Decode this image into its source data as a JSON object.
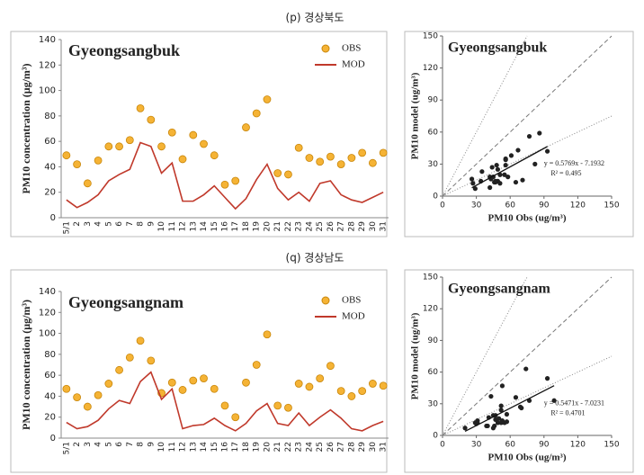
{
  "captions": [
    "(p) 경상북도",
    "(q) 경상남도"
  ],
  "chart_data": [
    {
      "type": "line",
      "title": "Gyeongsangbuk",
      "y_label": "PM10 concentration (μg/m³)",
      "categories": [
        "5/1",
        "2",
        "3",
        "4",
        "5",
        "6",
        "7",
        "8",
        "9",
        "10",
        "11",
        "12",
        "13",
        "14",
        "15",
        "16",
        "17",
        "18",
        "19",
        "20",
        "21",
        "22",
        "23",
        "24",
        "25",
        "26",
        "27",
        "28",
        "29",
        "30",
        "31"
      ],
      "series": [
        {
          "name": "OBS",
          "color": "#f5b335",
          "mode": "markers",
          "values": [
            49,
            42,
            27,
            45,
            56,
            56,
            61,
            86,
            77,
            56,
            67,
            46,
            65,
            58,
            49,
            26,
            29,
            71,
            82,
            93,
            35,
            34,
            55,
            47,
            44,
            48,
            42,
            47,
            51,
            43,
            51
          ]
        },
        {
          "name": "MOD",
          "color": "#c0392b",
          "mode": "lines",
          "values": [
            14,
            8,
            12,
            18,
            29,
            34,
            38,
            59,
            56,
            35,
            43,
            13,
            13,
            18,
            25,
            16,
            7,
            15,
            30,
            42,
            23,
            14,
            20,
            13,
            27,
            29,
            18,
            14,
            12,
            16,
            20
          ]
        }
      ],
      "ylim": [
        0,
        140
      ],
      "yticks": [
        0,
        20,
        40,
        60,
        80,
        100,
        120,
        140
      ]
    },
    {
      "type": "scatter",
      "title": "Gyeongsangbuk",
      "x_label": "PM10 Obs (ug/m³)",
      "y_label": "PM10 model (ug/m³)",
      "x": [
        49,
        42,
        27,
        45,
        56,
        56,
        61,
        86,
        77,
        56,
        67,
        46,
        65,
        58,
        49,
        26,
        29,
        71,
        82,
        93,
        35,
        34,
        55,
        47,
        44,
        48,
        42,
        47,
        51,
        43,
        51
      ],
      "values": [
        14,
        8,
        12,
        18,
        29,
        34,
        38,
        59,
        56,
        35,
        43,
        13,
        13,
        18,
        25,
        16,
        7,
        15,
        30,
        42,
        23,
        14,
        20,
        13,
        27,
        29,
        18,
        14,
        12,
        16,
        20
      ],
      "color": "#222222",
      "fit": {
        "slope": 0.5769,
        "intercept": -7.1932,
        "label": "y = 0.5769x - 7.1932",
        "r2_label": "R² = 0.495"
      },
      "xlim": [
        0,
        150
      ],
      "ylim": [
        0,
        150
      ],
      "xticks": [
        0,
        30,
        60,
        90,
        120,
        150
      ],
      "yticks": [
        0,
        30,
        60,
        90,
        120,
        150
      ]
    },
    {
      "type": "line",
      "title": "Gyeongsangnam",
      "y_label": "PM10 concentration (μg/m³)",
      "categories": [
        "5/1",
        "2",
        "3",
        "4",
        "5",
        "6",
        "7",
        "8",
        "9",
        "10",
        "11",
        "12",
        "13",
        "14",
        "15",
        "16",
        "17",
        "18",
        "19",
        "20",
        "21",
        "22",
        "23",
        "24",
        "25",
        "26",
        "27",
        "28",
        "29",
        "30",
        "31"
      ],
      "series": [
        {
          "name": "OBS",
          "color": "#f5b335",
          "mode": "markers",
          "values": [
            47,
            39,
            30,
            41,
            52,
            65,
            77,
            93,
            74,
            43,
            53,
            46,
            55,
            57,
            47,
            31,
            20,
            53,
            70,
            99,
            31,
            29,
            52,
            49,
            57,
            69,
            45,
            40,
            45,
            52,
            50
          ]
        },
        {
          "name": "MOD",
          "color": "#c0392b",
          "mode": "lines",
          "values": [
            15,
            9,
            11,
            17,
            28,
            36,
            33,
            54,
            63,
            37,
            47,
            9,
            12,
            13,
            19,
            12,
            7,
            14,
            26,
            33,
            14,
            12,
            24,
            12,
            20,
            27,
            19,
            9,
            7,
            12,
            16
          ]
        }
      ],
      "ylim": [
        0,
        140
      ],
      "yticks": [
        0,
        20,
        40,
        60,
        80,
        100,
        120,
        140
      ]
    },
    {
      "type": "scatter",
      "title": "Gyeongsangnam",
      "x_label": "PM10 Obs (ug/m³)",
      "y_label": "PM10 model (ug/m³)",
      "x": [
        47,
        39,
        30,
        41,
        52,
        65,
        77,
        93,
        74,
        43,
        53,
        46,
        55,
        57,
        47,
        31,
        20,
        53,
        70,
        99,
        31,
        29,
        52,
        49,
        57,
        69,
        45,
        40,
        45,
        52,
        50
      ],
      "values": [
        15,
        9,
        11,
        17,
        28,
        36,
        33,
        54,
        63,
        37,
        47,
        9,
        12,
        13,
        19,
        12,
        7,
        14,
        26,
        33,
        14,
        12,
        24,
        12,
        20,
        27,
        19,
        9,
        7,
        12,
        16
      ],
      "color": "#222222",
      "fit": {
        "slope": 0.5471,
        "intercept": -7.0231,
        "label": "y = 0.5471x - 7.0231",
        "r2_label": "R² = 0.4701"
      },
      "xlim": [
        0,
        150
      ],
      "ylim": [
        0,
        150
      ],
      "xticks": [
        0,
        30,
        60,
        90,
        120,
        150
      ],
      "yticks": [
        0,
        30,
        60,
        90,
        120,
        150
      ]
    }
  ]
}
